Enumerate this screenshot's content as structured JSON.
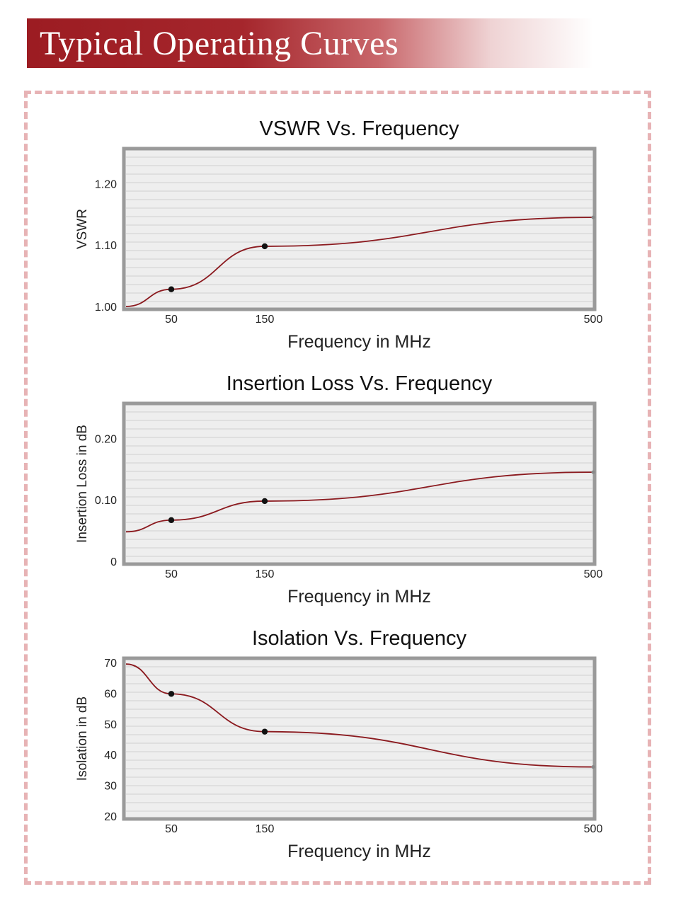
{
  "header": {
    "title": "Typical Operating Curves",
    "banner_color": "#9c1c22"
  },
  "frame": {
    "border_color": "#e7b3b5"
  },
  "curve_color": "#8b1a1f",
  "chart_data": [
    {
      "type": "line",
      "title": "VSWR Vs. Frequency",
      "xlabel": "Frequency in MHz",
      "ylabel": "VSWR",
      "x_ticks": [
        "50",
        "150",
        "500"
      ],
      "y_ticks": [
        "1.20",
        "1.10",
        "1.00"
      ],
      "ylim": [
        1.0,
        1.25
      ],
      "series": [
        {
          "name": "VSWR",
          "points": [
            {
              "x": 0,
              "y": 1.0
            },
            {
              "x": 50,
              "y": 1.028
            },
            {
              "x": 150,
              "y": 1.098
            },
            {
              "x": 500,
              "y": 1.145
            }
          ],
          "markers": [
            {
              "x": 50,
              "y": 1.028
            },
            {
              "x": 150,
              "y": 1.098
            }
          ]
        }
      ]
    },
    {
      "type": "line",
      "title": "Insertion Loss Vs. Frequency",
      "xlabel": "Frequency in MHz",
      "ylabel": "Insertion Loss in dB",
      "x_ticks": [
        "50",
        "150",
        "500"
      ],
      "y_ticks": [
        "0.20",
        "0.10",
        "0"
      ],
      "ylim": [
        0,
        0.25
      ],
      "series": [
        {
          "name": "Insertion Loss",
          "points": [
            {
              "x": 0,
              "y": 0.048
            },
            {
              "x": 50,
              "y": 0.067
            },
            {
              "x": 150,
              "y": 0.098
            },
            {
              "x": 500,
              "y": 0.145
            }
          ],
          "markers": [
            {
              "x": 50,
              "y": 0.067
            },
            {
              "x": 150,
              "y": 0.098
            }
          ]
        }
      ]
    },
    {
      "type": "line",
      "title": "Isolation Vs. Frequency",
      "xlabel": "Frequency in MHz",
      "ylabel": "Isolation in dB",
      "x_ticks": [
        "50",
        "150",
        "500"
      ],
      "y_ticks": [
        "70",
        "60",
        "50",
        "40",
        "30",
        "20"
      ],
      "ylim": [
        20,
        70
      ],
      "series": [
        {
          "name": "Isolation",
          "points": [
            {
              "x": 0,
              "y": 69.5
            },
            {
              "x": 50,
              "y": 59.8
            },
            {
              "x": 150,
              "y": 47.5
            },
            {
              "x": 500,
              "y": 36.0
            }
          ],
          "markers": [
            {
              "x": 50,
              "y": 59.8
            },
            {
              "x": 150,
              "y": 47.5
            }
          ]
        }
      ]
    }
  ]
}
